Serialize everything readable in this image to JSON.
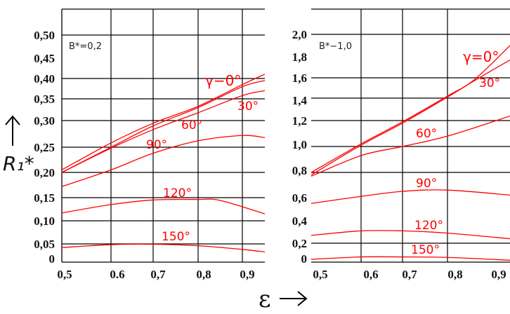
{
  "y_axis_label": "R₁*",
  "x_axis_label": "ε",
  "colors": {
    "curves": "#ff0000",
    "grid": "#000000"
  },
  "chart_data": [
    {
      "type": "line",
      "annotation": "B*=0,2",
      "xlabel": "ε",
      "ylabel": "R₁*",
      "xlim": [
        0.5,
        0.95
      ],
      "ylim": [
        0,
        0.55
      ],
      "x_ticks": [
        "0,5",
        "0.6",
        "0,7",
        "0,8",
        "0,9"
      ],
      "y_ticks": [
        "0,50",
        "0,45",
        "0,40",
        "0,35",
        "0,30",
        "0,25",
        "0,20",
        "0,15",
        "0,10",
        "0,05",
        "0"
      ],
      "grid": true,
      "series": [
        {
          "name": "γ=0°",
          "label": "γ−0°",
          "x": [
            0.5,
            0.6,
            0.7,
            0.8,
            0.9,
            0.95
          ],
          "y": [
            0.205,
            0.258,
            0.295,
            0.333,
            0.385,
            0.41
          ]
        },
        {
          "name": "30°",
          "label": "30°",
          "x": [
            0.5,
            0.6,
            0.7,
            0.8,
            0.9,
            0.95
          ],
          "y": [
            0.2,
            0.25,
            0.29,
            0.33,
            0.38,
            0.395
          ]
        },
        {
          "name": "60°",
          "label": "60°",
          "x": [
            0.5,
            0.6,
            0.7,
            0.8,
            0.9,
            0.95
          ],
          "y": [
            0.2,
            0.248,
            0.283,
            0.318,
            0.358,
            0.37
          ]
        },
        {
          "name": "90°",
          "label": "90°",
          "x": [
            0.5,
            0.6,
            0.7,
            0.8,
            0.9,
            0.95
          ],
          "y": [
            0.172,
            0.205,
            0.238,
            0.262,
            0.272,
            0.268
          ]
        },
        {
          "name": "120°",
          "label": "120°",
          "x": [
            0.5,
            0.6,
            0.7,
            0.8,
            0.85,
            0.95
          ],
          "y": [
            0.117,
            0.135,
            0.145,
            0.146,
            0.144,
            0.115
          ]
        },
        {
          "name": "150°",
          "label": "150°",
          "x": [
            0.5,
            0.6,
            0.7,
            0.8,
            0.9,
            0.95
          ],
          "y": [
            0.04,
            0.048,
            0.049,
            0.045,
            0.035,
            0.028
          ]
        }
      ]
    },
    {
      "type": "line",
      "annotation": "B*−1,0",
      "xlabel": "ε",
      "ylabel": "",
      "xlim": [
        0.5,
        0.92
      ],
      "ylim": [
        0,
        2.2
      ],
      "x_ticks": [
        "0,5",
        "0,6",
        "0,7",
        "0,8",
        "0,9"
      ],
      "y_ticks": [
        "2,0",
        "1,8",
        "1,6",
        "1,4",
        "1,2",
        "1,0",
        "0,8",
        "0,6",
        "0,4",
        "0,2",
        "0"
      ],
      "grid": true,
      "series": [
        {
          "name": "γ=0°",
          "label": "γ=0°",
          "x": [
            0.5,
            0.6,
            0.7,
            0.8,
            0.85,
            0.92
          ],
          "y": [
            0.8,
            1.02,
            1.19,
            1.42,
            1.58,
            1.9
          ]
        },
        {
          "name": "30°",
          "label": "30°",
          "x": [
            0.5,
            0.6,
            0.7,
            0.8,
            0.85,
            0.92
          ],
          "y": [
            0.78,
            1.01,
            1.18,
            1.41,
            1.57,
            1.77
          ]
        },
        {
          "name": "60°",
          "label": "60°",
          "x": [
            0.5,
            0.6,
            0.7,
            0.8,
            0.92
          ],
          "y": [
            0.77,
            0.93,
            1.0,
            1.08,
            1.24
          ]
        },
        {
          "name": "90°",
          "label": "90°",
          "x": [
            0.5,
            0.6,
            0.7,
            0.8,
            0.92
          ],
          "y": [
            0.55,
            0.61,
            0.65,
            0.66,
            0.62
          ]
        },
        {
          "name": "120°",
          "label": "120°",
          "x": [
            0.5,
            0.6,
            0.7,
            0.8,
            0.92
          ],
          "y": [
            0.27,
            0.31,
            0.31,
            0.29,
            0.24
          ]
        },
        {
          "name": "150°",
          "label": "150°",
          "x": [
            0.5,
            0.6,
            0.7,
            0.8,
            0.92
          ],
          "y": [
            0.03,
            0.055,
            0.055,
            0.05,
            0.02
          ]
        }
      ]
    }
  ]
}
